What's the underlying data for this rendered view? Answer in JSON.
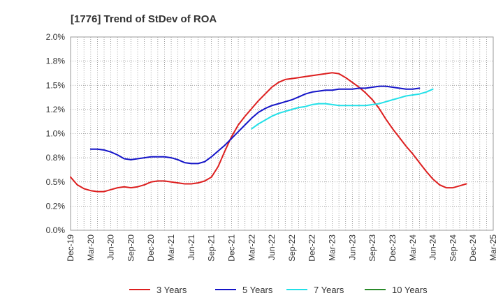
{
  "chart_data": {
    "type": "line",
    "title": "[1776]  Trend of StDev of ROA",
    "xlabel": "",
    "ylabel": "",
    "x_ticks": [
      "Dec-19",
      "Mar-20",
      "Jun-20",
      "Sep-20",
      "Dec-20",
      "Mar-21",
      "Jun-21",
      "Sep-21",
      "Dec-21",
      "Mar-22",
      "Jun-22",
      "Sep-22",
      "Dec-22",
      "Mar-23",
      "Jun-23",
      "Sep-23",
      "Dec-23",
      "Mar-24",
      "Jun-24",
      "Sep-24",
      "Dec-24",
      "Mar-25"
    ],
    "y_ticks": [
      "0.0%",
      "0.2%",
      "0.5%",
      "0.8%",
      "1.0%",
      "1.2%",
      "1.5%",
      "1.8%",
      "2.0%"
    ],
    "ylim": [
      0,
      2.0
    ],
    "grid": true,
    "legend_position": "bottom",
    "series": [
      {
        "name": "3 Years",
        "color": "#dd1f1f",
        "values": [
          0.55,
          0.47,
          0.43,
          0.41,
          0.4,
          0.4,
          0.42,
          0.44,
          0.45,
          0.44,
          0.45,
          0.47,
          0.5,
          0.51,
          0.51,
          0.5,
          0.49,
          0.48,
          0.48,
          0.49,
          0.51,
          0.55,
          0.66,
          0.82,
          0.97,
          1.09,
          1.18,
          1.26,
          1.34,
          1.41,
          1.48,
          1.53,
          1.56,
          1.57,
          1.58,
          1.59,
          1.6,
          1.61,
          1.62,
          1.63,
          1.62,
          1.58,
          1.53,
          1.48,
          1.42,
          1.35,
          1.26,
          1.15,
          1.05,
          0.96,
          0.87,
          0.79,
          0.7,
          0.61,
          0.53,
          0.47,
          0.44,
          0.44,
          0.46,
          0.48
        ]
      },
      {
        "name": "5 Years",
        "color": "#1414c8",
        "values": [
          null,
          null,
          null,
          0.84,
          0.84,
          0.83,
          0.81,
          0.78,
          0.74,
          0.73,
          0.74,
          0.75,
          0.76,
          0.76,
          0.76,
          0.75,
          0.73,
          0.7,
          0.69,
          0.69,
          0.71,
          0.76,
          0.82,
          0.88,
          0.95,
          1.02,
          1.09,
          1.16,
          1.22,
          1.26,
          1.29,
          1.31,
          1.33,
          1.35,
          1.38,
          1.41,
          1.43,
          1.44,
          1.45,
          1.45,
          1.46,
          1.46,
          1.46,
          1.47,
          1.47,
          1.48,
          1.49,
          1.49,
          1.48,
          1.47,
          1.46,
          1.46,
          1.47
        ]
      },
      {
        "name": "7 Years",
        "color": "#22e0e8",
        "values": [
          null,
          null,
          null,
          null,
          null,
          null,
          null,
          null,
          null,
          null,
          null,
          null,
          null,
          null,
          null,
          null,
          null,
          null,
          null,
          null,
          null,
          null,
          null,
          null,
          null,
          null,
          null,
          1.05,
          1.1,
          1.14,
          1.18,
          1.21,
          1.23,
          1.25,
          1.27,
          1.28,
          1.3,
          1.31,
          1.31,
          1.3,
          1.29,
          1.29,
          1.29,
          1.29,
          1.29,
          1.3,
          1.31,
          1.33,
          1.35,
          1.37,
          1.39,
          1.4,
          1.41,
          1.43,
          1.46
        ]
      },
      {
        "name": "10 Years",
        "color": "#2a8a2a",
        "values": []
      }
    ]
  }
}
